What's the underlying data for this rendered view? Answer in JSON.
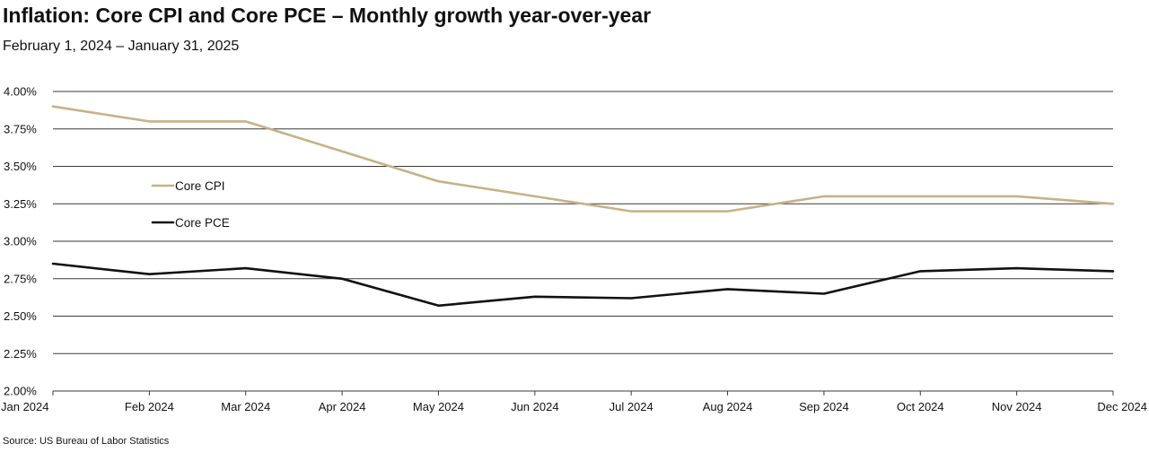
{
  "header": {
    "title": "Inflation: Core CPI and Core PCE – Monthly growth year-over-year",
    "subtitle": "February 1, 2024 – January 31, 2025"
  },
  "footer": {
    "source": "Source: US Bureau of Labor Statistics"
  },
  "colors": {
    "core_cpi": "#c8b185",
    "core_pce": "#111111",
    "grid": "#3a3a3a"
  },
  "chart_data": {
    "type": "line",
    "title": "Inflation: Core CPI and Core PCE – Monthly growth year-over-year",
    "subtitle": "February 1, 2024 – January 31, 2025",
    "xlabel": "",
    "ylabel": "",
    "categories": [
      "Jan 2024",
      "Feb 2024",
      "Mar 2024",
      "Apr 2024",
      "May 2024",
      "Jun 2024",
      "Jul 2024",
      "Aug 2024",
      "Sep 2024",
      "Oct 2024",
      "Nov 2024",
      "Dec 2024"
    ],
    "ylim": [
      2.0,
      4.0
    ],
    "yticks": [
      2.0,
      2.25,
      2.5,
      2.75,
      3.0,
      3.25,
      3.5,
      3.75,
      4.0
    ],
    "ytick_labels": [
      "2.00%",
      "2.25%",
      "2.50%",
      "2.75%",
      "3.00%",
      "3.25%",
      "3.50%",
      "3.75%",
      "4.00%"
    ],
    "grid": true,
    "legend_position": "left",
    "series": [
      {
        "name": "Core CPI",
        "color": "#c8b185",
        "values": [
          3.9,
          3.8,
          3.8,
          3.6,
          3.4,
          3.3,
          3.2,
          3.2,
          3.3,
          3.3,
          3.3,
          3.25
        ]
      },
      {
        "name": "Core PCE",
        "color": "#111111",
        "values": [
          2.85,
          2.78,
          2.82,
          2.75,
          2.57,
          2.63,
          2.62,
          2.68,
          2.65,
          2.8,
          2.82,
          2.8
        ]
      }
    ]
  }
}
